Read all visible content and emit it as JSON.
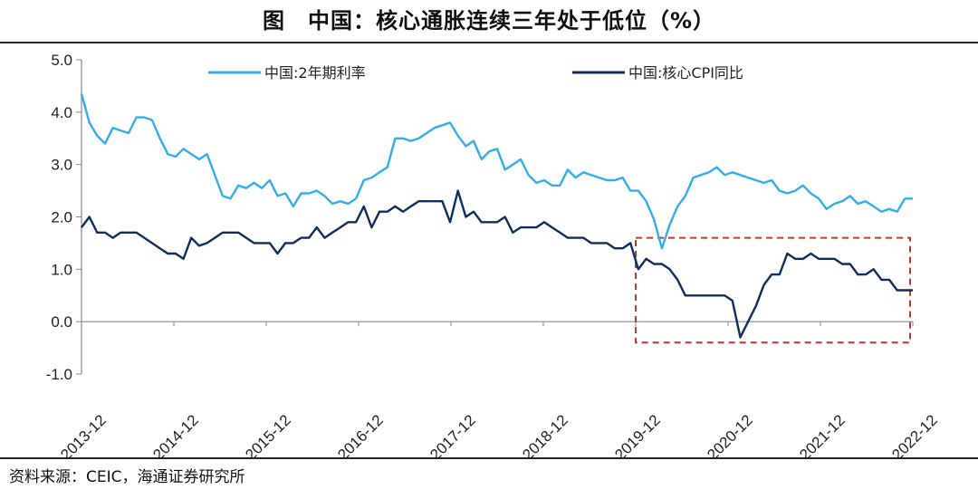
{
  "header": {
    "title": "图　中国：核心通胀连续三年处于低位（%）"
  },
  "footer": {
    "source": "资料来源：CEIC，海通证券研究所"
  },
  "colors": {
    "series1": "#33aee8",
    "series2": "#0f2d5e",
    "highlight": "#c0392b",
    "axis": "#888888"
  },
  "chart_data": {
    "type": "line",
    "title": "中国：核心通胀连续三年处于低位（%）",
    "ylim": [
      -1.0,
      5.0
    ],
    "yticks": [
      "5.0",
      "4.0",
      "3.0",
      "2.0",
      "1.0",
      "0.0",
      "-1.0"
    ],
    "xticks": [
      "2013-12",
      "2014-12",
      "2015-12",
      "2016-12",
      "2017-12",
      "2018-12",
      "2019-12",
      "2020-12",
      "2021-12",
      "2022-12"
    ],
    "legend_position": "top",
    "grid": false,
    "series": [
      {
        "name": "中国:2年期利率",
        "color": "#33aee8",
        "values": [
          4.35,
          3.8,
          3.55,
          3.4,
          3.7,
          3.65,
          3.6,
          3.9,
          3.9,
          3.85,
          3.5,
          3.2,
          3.15,
          3.3,
          3.2,
          3.1,
          3.2,
          2.8,
          2.4,
          2.35,
          2.6,
          2.55,
          2.65,
          2.55,
          2.7,
          2.4,
          2.45,
          2.2,
          2.45,
          2.45,
          2.5,
          2.4,
          2.25,
          2.3,
          2.25,
          2.35,
          2.7,
          2.75,
          2.85,
          2.95,
          3.5,
          3.5,
          3.45,
          3.5,
          3.6,
          3.7,
          3.75,
          3.8,
          3.55,
          3.35,
          3.45,
          3.1,
          3.25,
          3.3,
          2.9,
          3.0,
          3.1,
          2.8,
          2.65,
          2.7,
          2.6,
          2.6,
          2.9,
          2.75,
          2.85,
          2.8,
          2.75,
          2.7,
          2.7,
          2.75,
          2.5,
          2.5,
          2.3,
          1.95,
          1.4,
          1.85,
          2.2,
          2.4,
          2.75,
          2.8,
          2.85,
          2.95,
          2.8,
          2.85,
          2.8,
          2.75,
          2.7,
          2.65,
          2.7,
          2.5,
          2.45,
          2.5,
          2.6,
          2.45,
          2.35,
          2.15,
          2.25,
          2.3,
          2.4,
          2.25,
          2.3,
          2.2,
          2.1,
          2.15,
          2.1,
          2.35,
          2.35
        ]
      },
      {
        "name": "中国:核心CPI同比",
        "color": "#0f2d5e",
        "values": [
          1.8,
          2.0,
          1.7,
          1.7,
          1.6,
          1.7,
          1.7,
          1.7,
          1.6,
          1.5,
          1.4,
          1.3,
          1.3,
          1.2,
          1.6,
          1.45,
          1.5,
          1.6,
          1.7,
          1.7,
          1.7,
          1.6,
          1.5,
          1.5,
          1.5,
          1.3,
          1.5,
          1.5,
          1.6,
          1.6,
          1.8,
          1.6,
          1.7,
          1.8,
          1.9,
          1.9,
          2.2,
          1.8,
          2.1,
          2.1,
          2.2,
          2.1,
          2.2,
          2.3,
          2.3,
          2.3,
          2.3,
          1.9,
          2.5,
          2.0,
          2.1,
          1.9,
          1.9,
          1.9,
          2.0,
          1.7,
          1.8,
          1.8,
          1.8,
          1.9,
          1.8,
          1.7,
          1.6,
          1.6,
          1.6,
          1.5,
          1.5,
          1.5,
          1.4,
          1.4,
          1.5,
          1.0,
          1.2,
          1.1,
          1.1,
          1.0,
          0.8,
          0.5,
          0.5,
          0.5,
          0.5,
          0.5,
          0.5,
          0.4,
          -0.3,
          0.0,
          0.3,
          0.7,
          0.9,
          0.9,
          1.3,
          1.2,
          1.2,
          1.3,
          1.2,
          1.2,
          1.2,
          1.1,
          1.1,
          0.9,
          0.9,
          1.0,
          0.8,
          0.8,
          0.6,
          0.6,
          0.6
        ]
      }
    ],
    "annotations": [
      {
        "type": "dashed-box",
        "x_start": "2019-12",
        "x_end": "2022-12",
        "y_range": [
          -0.4,
          1.6
        ],
        "color": "#c0392b"
      }
    ]
  }
}
